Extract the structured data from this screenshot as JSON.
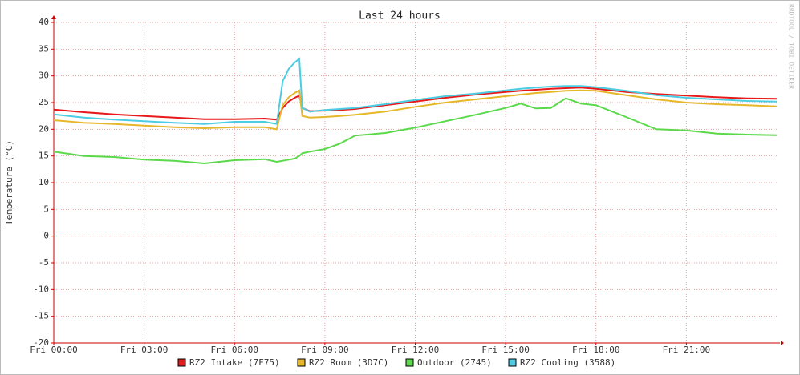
{
  "chart_data": {
    "type": "line",
    "title": "Last 24 hours",
    "y_label": "Temperature (°C)",
    "watermark": "RRDTOOL / TOBI OETIKER",
    "x": [
      0,
      1,
      2,
      3,
      4,
      5,
      6,
      7,
      7.4,
      7.6,
      7.8,
      8,
      8.15,
      8.25,
      8.5,
      9,
      9.5,
      10,
      11,
      12,
      13,
      14,
      15,
      15.5,
      16,
      16.5,
      17,
      17.5,
      18,
      19,
      20,
      21,
      22,
      23,
      24
    ],
    "xlim": [
      0,
      24
    ],
    "xticks": [
      {
        "value": 0,
        "label": "Fri 00:00"
      },
      {
        "value": 3,
        "label": "Fri 03:00"
      },
      {
        "value": 6,
        "label": "Fri 06:00"
      },
      {
        "value": 9,
        "label": "Fri 09:00"
      },
      {
        "value": 12,
        "label": "Fri 12:00"
      },
      {
        "value": 15,
        "label": "Fri 15:00"
      },
      {
        "value": 18,
        "label": "Fri 18:00"
      },
      {
        "value": 21,
        "label": "Fri 21:00"
      }
    ],
    "ylim": [
      -20,
      40
    ],
    "yticks": [
      -20,
      -15,
      -10,
      -5,
      0,
      5,
      10,
      15,
      20,
      25,
      30,
      35,
      40
    ],
    "grid": true,
    "legend": "bottom",
    "series": [
      {
        "name": "RZ2 Intake (7F75)",
        "color": "#e8191b",
        "values": [
          23.7,
          23.2,
          22.8,
          22.5,
          22.2,
          21.9,
          21.9,
          22.0,
          21.8,
          24.0,
          25.2,
          25.9,
          26.3,
          24.0,
          23.4,
          23.5,
          23.6,
          23.8,
          24.5,
          25.2,
          25.9,
          26.5,
          27.0,
          27.2,
          27.4,
          27.6,
          27.7,
          27.8,
          27.6,
          27.0,
          26.6,
          26.3,
          26.0,
          25.8,
          25.7
        ]
      },
      {
        "name": "RZ2 Room (3D7C)",
        "color": "#e6b72a",
        "values": [
          21.7,
          21.2,
          21.0,
          20.7,
          20.4,
          20.2,
          20.4,
          20.4,
          20.0,
          24.5,
          26.0,
          26.8,
          27.3,
          22.5,
          22.2,
          22.3,
          22.5,
          22.7,
          23.3,
          24.2,
          25.0,
          25.6,
          26.2,
          26.5,
          26.8,
          27.0,
          27.2,
          27.3,
          27.2,
          26.4,
          25.6,
          25.0,
          24.7,
          24.5,
          24.3
        ]
      },
      {
        "name": "Outdoor (2745)",
        "color": "#5ad94a",
        "values": [
          15.8,
          15.0,
          14.8,
          14.3,
          14.1,
          13.6,
          14.2,
          14.4,
          13.9,
          14.1,
          14.3,
          14.5,
          15.0,
          15.5,
          15.8,
          16.3,
          17.3,
          18.8,
          19.3,
          20.3,
          21.5,
          22.7,
          24.0,
          24.8,
          23.9,
          24.0,
          25.8,
          24.8,
          24.5,
          22.3,
          20.0,
          19.8,
          19.2,
          19.0,
          18.9
        ]
      },
      {
        "name": "RZ2 Cooling (3588)",
        "color": "#4ccde3",
        "values": [
          22.8,
          22.2,
          21.8,
          21.5,
          21.2,
          21.0,
          21.4,
          21.4,
          21.0,
          29.0,
          31.3,
          32.5,
          33.2,
          24.0,
          23.3,
          23.6,
          23.8,
          24.0,
          24.7,
          25.5,
          26.2,
          26.7,
          27.3,
          27.6,
          27.8,
          28.0,
          28.1,
          28.1,
          27.9,
          27.2,
          26.4,
          25.9,
          25.6,
          25.3,
          25.2
        ]
      }
    ]
  }
}
